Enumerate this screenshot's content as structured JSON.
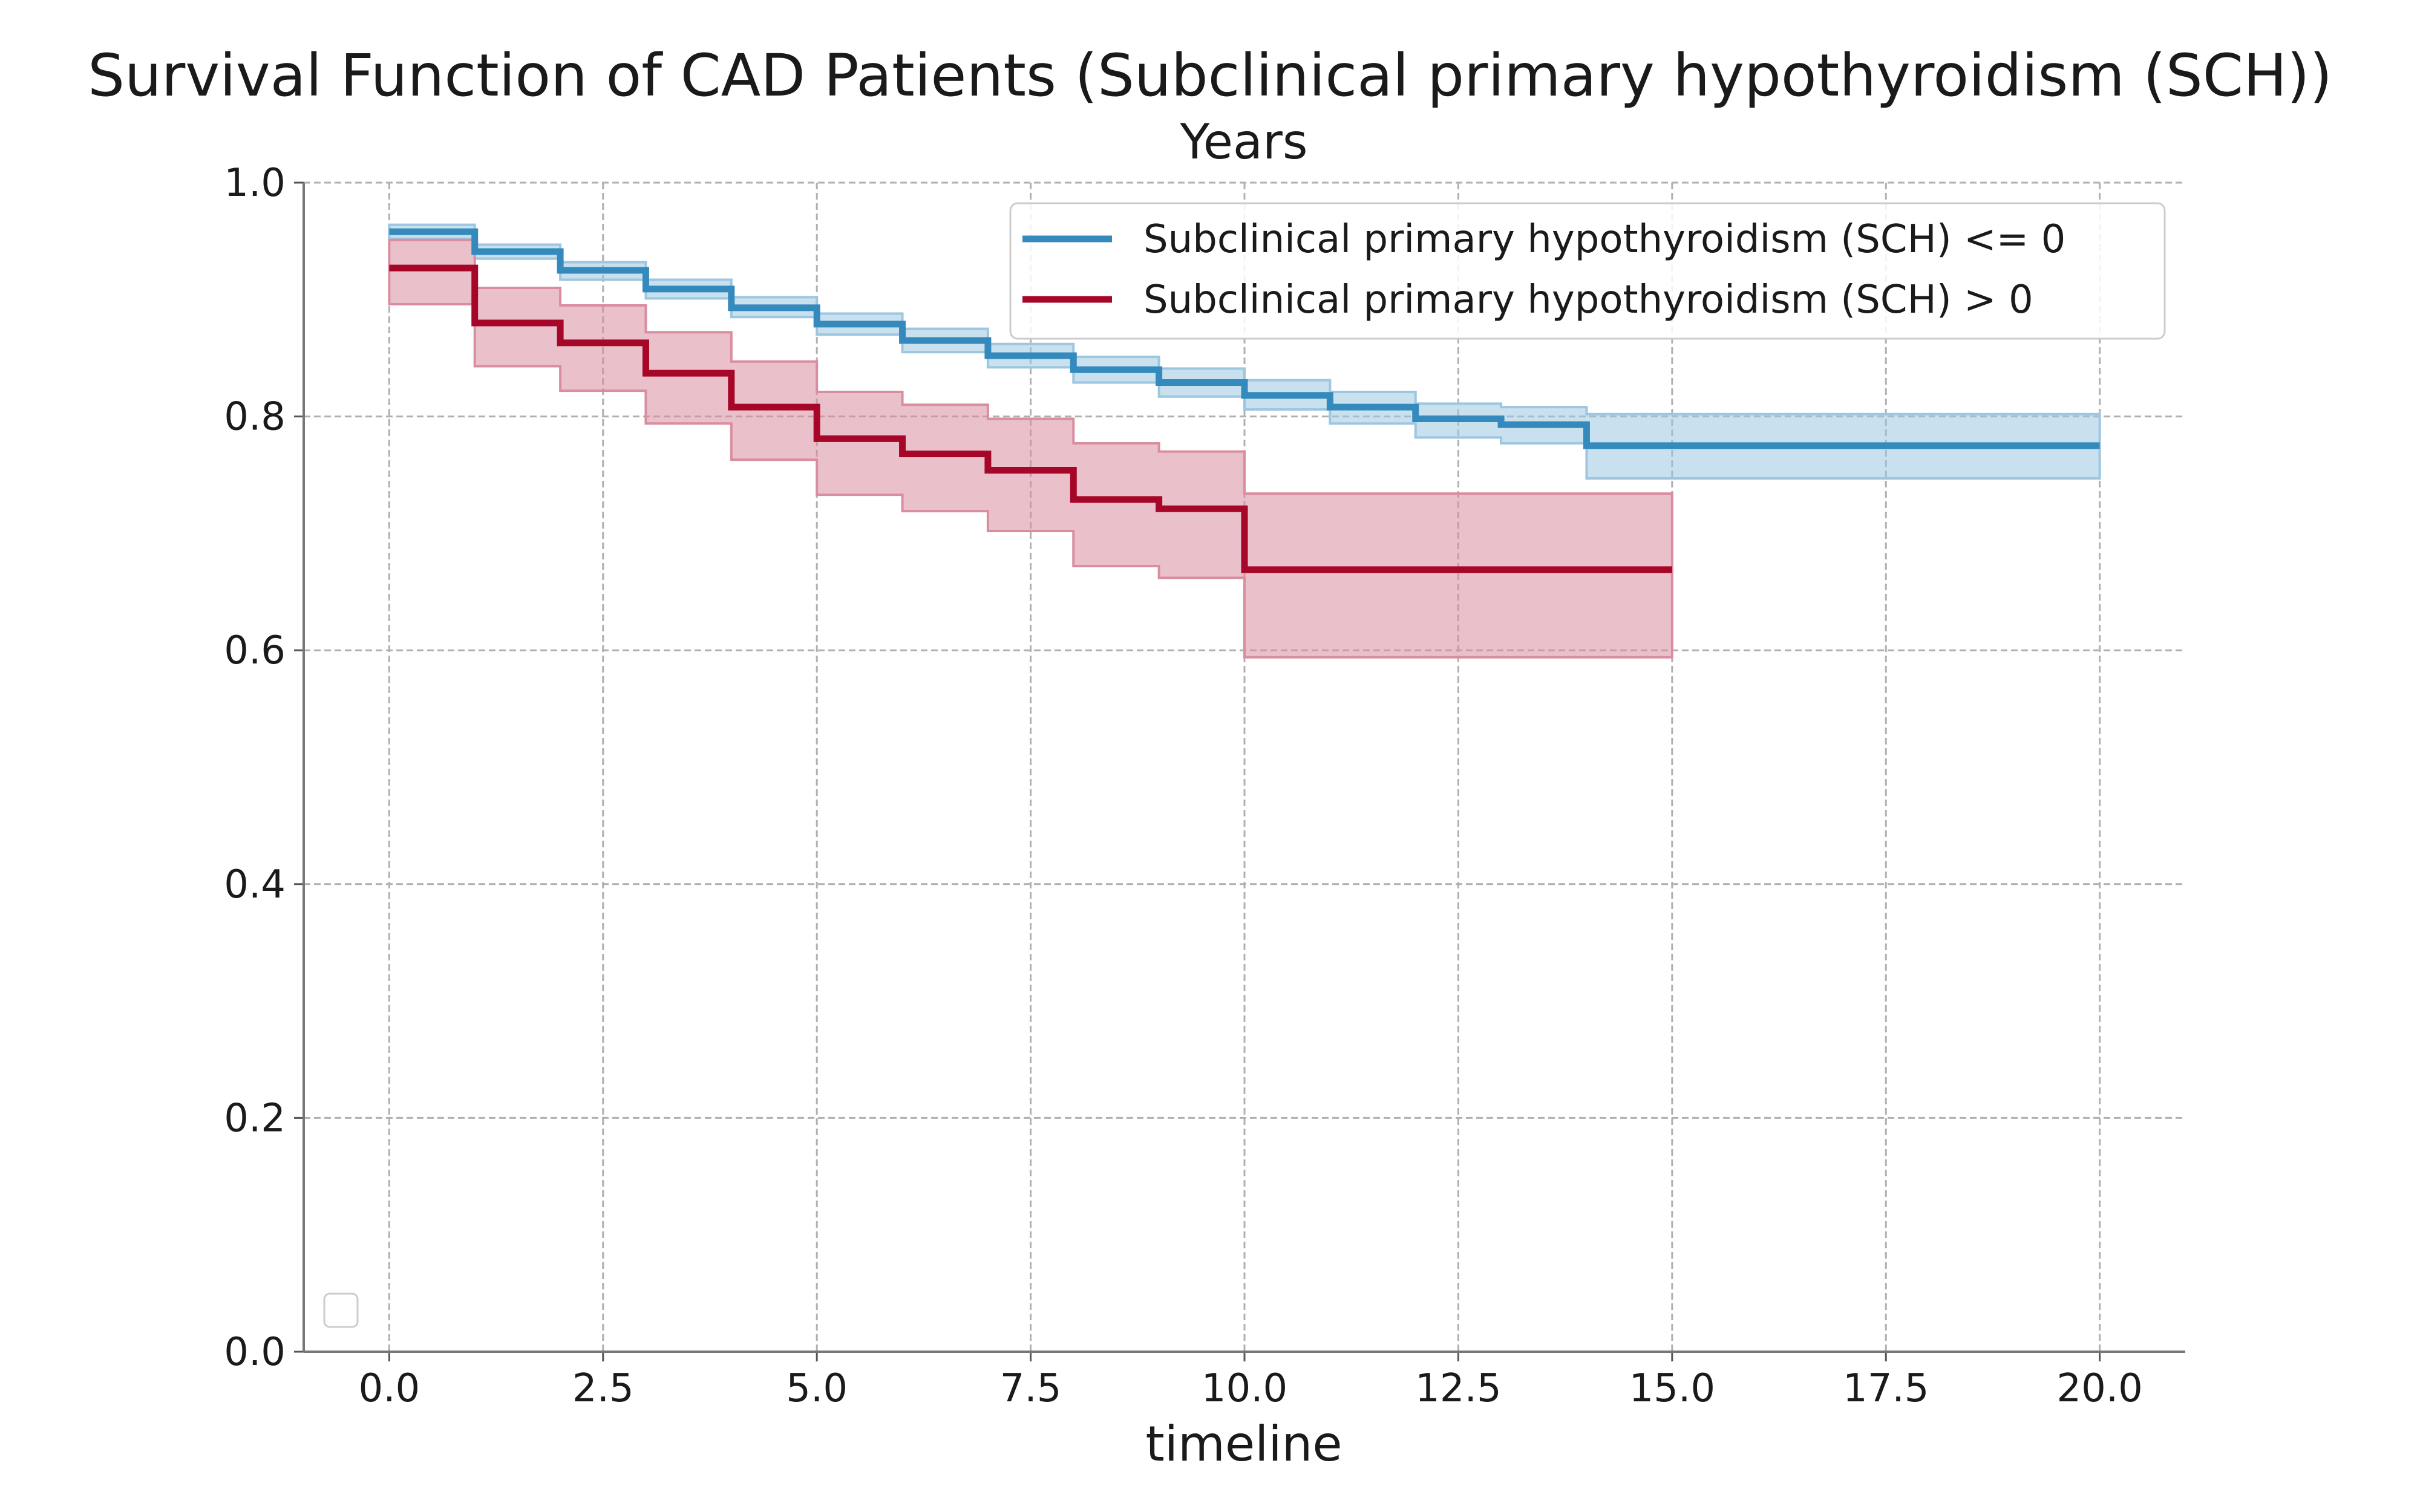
{
  "chart_data": {
    "type": "line",
    "title": "Survival Function of CAD Patients (Subclinical primary hypothyroidism (SCH))",
    "subtitle": "Years",
    "xlabel": "timeline",
    "ylabel": "",
    "xlim": [
      -1,
      21
    ],
    "ylim": [
      0,
      1.0
    ],
    "x_ticks": [
      "0.0",
      "2.5",
      "5.0",
      "7.5",
      "10.0",
      "12.5",
      "15.0",
      "17.5",
      "20.0"
    ],
    "y_ticks": [
      "0.0",
      "0.2",
      "0.4",
      "0.6",
      "0.8",
      "1.0"
    ],
    "grid": true,
    "legend_position": "top-right",
    "series": [
      {
        "name": "Subclinical primary hypothyroidism (SCH) <= 0",
        "color": "#348abd",
        "band_color": "#9dc6e0",
        "steps": [
          {
            "x": 0,
            "y": 0.958
          },
          {
            "x": 1,
            "y": 0.941
          },
          {
            "x": 2,
            "y": 0.925
          },
          {
            "x": 3,
            "y": 0.909
          },
          {
            "x": 4,
            "y": 0.893
          },
          {
            "x": 5,
            "y": 0.879
          },
          {
            "x": 6,
            "y": 0.865
          },
          {
            "x": 7,
            "y": 0.852
          },
          {
            "x": 8,
            "y": 0.84
          },
          {
            "x": 9,
            "y": 0.829
          },
          {
            "x": 10,
            "y": 0.818
          },
          {
            "x": 11,
            "y": 0.808
          },
          {
            "x": 12,
            "y": 0.798
          },
          {
            "x": 13,
            "y": 0.793
          },
          {
            "x": 14,
            "y": 0.775
          },
          {
            "x": 20,
            "y": 0.775
          }
        ],
        "ci_lower": [
          0.952,
          0.935,
          0.917,
          0.901,
          0.885,
          0.87,
          0.855,
          0.842,
          0.829,
          0.817,
          0.806,
          0.794,
          0.782,
          0.777,
          0.747,
          0.747
        ],
        "ci_upper": [
          0.964,
          0.947,
          0.932,
          0.917,
          0.902,
          0.888,
          0.875,
          0.862,
          0.851,
          0.841,
          0.831,
          0.821,
          0.811,
          0.808,
          0.802,
          0.802
        ]
      },
      {
        "name": "Subclinical primary hypothyroidism (SCH) > 0",
        "color": "#a60628",
        "band_color": "#d98ea0",
        "steps": [
          {
            "x": 0,
            "y": 0.927
          },
          {
            "x": 1,
            "y": 0.88
          },
          {
            "x": 2,
            "y": 0.863
          },
          {
            "x": 3,
            "y": 0.837
          },
          {
            "x": 4,
            "y": 0.808
          },
          {
            "x": 5,
            "y": 0.781
          },
          {
            "x": 6,
            "y": 0.768
          },
          {
            "x": 7,
            "y": 0.754
          },
          {
            "x": 8,
            "y": 0.729
          },
          {
            "x": 9,
            "y": 0.721
          },
          {
            "x": 10,
            "y": 0.669
          },
          {
            "x": 15,
            "y": 0.669
          }
        ],
        "ci_lower": [
          0.896,
          0.843,
          0.822,
          0.794,
          0.763,
          0.733,
          0.719,
          0.702,
          0.672,
          0.662,
          0.594,
          0.594
        ],
        "ci_upper": [
          0.951,
          0.91,
          0.895,
          0.872,
          0.847,
          0.821,
          0.81,
          0.798,
          0.777,
          0.77,
          0.734,
          0.734
        ]
      }
    ]
  }
}
